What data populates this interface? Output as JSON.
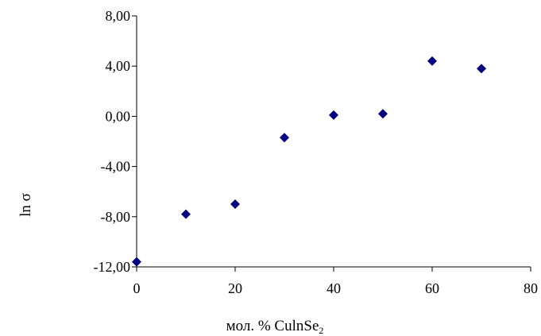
{
  "chart_data": {
    "type": "scatter",
    "xlabel": "мол. % CulnSe",
    "xlabel_subscript": "2",
    "ylabel": "ln σ",
    "xlim": [
      0,
      80
    ],
    "ylim": [
      -12,
      8
    ],
    "x_ticks": [
      "0",
      "20",
      "40",
      "60",
      "80"
    ],
    "y_ticks": [
      "8,00",
      "4,00",
      "0,00",
      "-4,00",
      "-8,00",
      "-12,00"
    ],
    "grid": false,
    "legend": "none",
    "marker": "diamond",
    "marker_color": "#000080",
    "points": [
      {
        "x": 0,
        "y": -11.6
      },
      {
        "x": 10,
        "y": -7.8
      },
      {
        "x": 20,
        "y": -7.0
      },
      {
        "x": 30,
        "y": -1.7
      },
      {
        "x": 40,
        "y": 0.1
      },
      {
        "x": 50,
        "y": 0.2
      },
      {
        "x": 60,
        "y": 4.4
      },
      {
        "x": 70,
        "y": 3.8
      }
    ]
  }
}
